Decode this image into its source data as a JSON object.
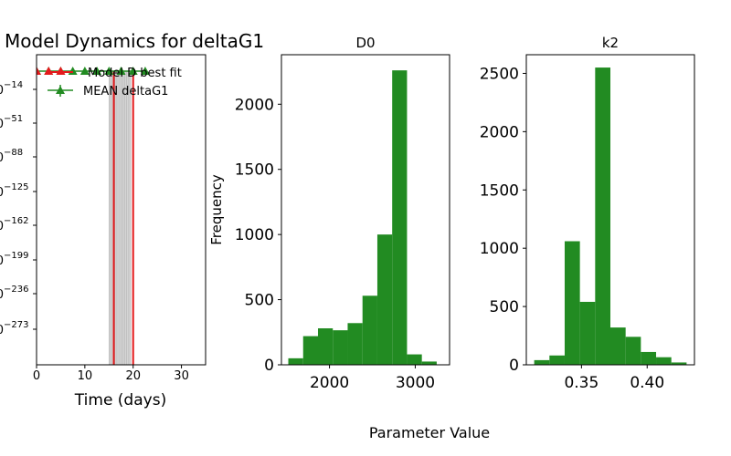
{
  "figure": {
    "suptitle": "Model Dynamics for deltaG1",
    "supxlabel": "Parameter Value"
  },
  "colors": {
    "model_line": "#e41a1c",
    "mean_line": "#228b22",
    "bar_fill": "#228b22",
    "band": "#c8c8c8"
  },
  "chart_data": [
    {
      "type": "line",
      "title": "",
      "xlabel": "Time (days)",
      "ylabel": "",
      "yscale": "log",
      "xlim": [
        0,
        35
      ],
      "xticks": [
        "0",
        "10",
        "20",
        "30"
      ],
      "ytick_exponents": [
        "-14",
        "-51",
        "-88",
        "-125",
        "-162",
        "-199",
        "-236",
        "-273"
      ],
      "legend_position": "top-right",
      "series": [
        {
          "name": "Model D best fit",
          "x": [
            16,
            16,
            20,
            20
          ],
          "y_log10": [
            -1,
            -310,
            -310,
            -1
          ]
        },
        {
          "name": "MEAN deltaG1",
          "x": [
            0,
            2.5,
            5,
            7.5,
            10,
            12.5,
            15,
            17.5,
            20,
            22.5
          ],
          "y_log10": [
            -1,
            -1,
            -1,
            -1,
            -1,
            -1,
            -1,
            -1,
            -1,
            -1
          ]
        }
      ],
      "band_x": [
        15,
        19.5
      ]
    },
    {
      "type": "bar",
      "title": "D0",
      "xlabel": "",
      "ylabel": "Frequency",
      "xlim": [
        1440,
        3400
      ],
      "ylim": [
        0,
        2380
      ],
      "xticks": [
        2000,
        3000
      ],
      "yticks": [
        0,
        500,
        1000,
        1500,
        2000
      ],
      "bin_edges": [
        1520,
        1693,
        1866,
        2039,
        2212,
        2385,
        2558,
        2731,
        2904,
        3077,
        3250
      ],
      "values": [
        50,
        220,
        280,
        265,
        320,
        530,
        1000,
        2260,
        80,
        25
      ]
    },
    {
      "type": "bar",
      "title": "k2",
      "xlabel": "",
      "ylabel": "",
      "xlim": [
        0.308,
        0.436
      ],
      "ylim": [
        0,
        2660
      ],
      "xticks": [
        "0.35",
        "0.40"
      ],
      "yticks": [
        0,
        500,
        1000,
        1500,
        2000,
        2500
      ],
      "bin_edges": [
        0.314,
        0.3256,
        0.3372,
        0.3488,
        0.3604,
        0.372,
        0.3836,
        0.3952,
        0.4068,
        0.4184,
        0.43
      ],
      "values": [
        40,
        80,
        1060,
        540,
        2550,
        320,
        240,
        110,
        65,
        20
      ]
    }
  ]
}
